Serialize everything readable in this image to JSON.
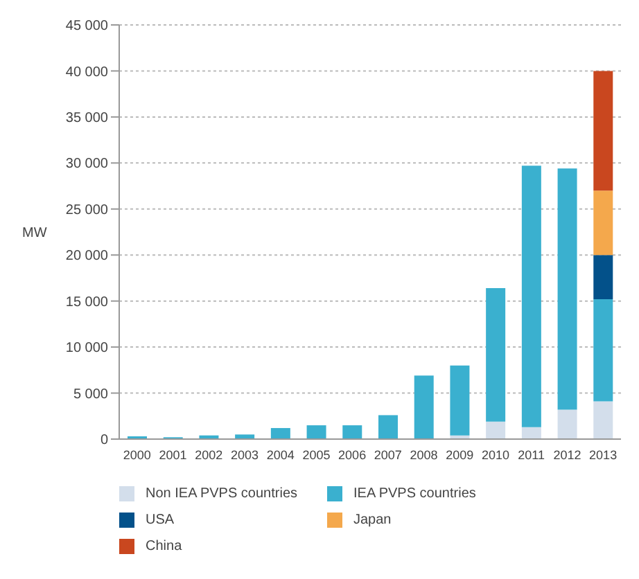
{
  "chart_data": {
    "type": "bar",
    "ylabel": "MW",
    "stacked": true,
    "grid": "y",
    "legend": "bottom",
    "categories": [
      "2000",
      "2001",
      "2002",
      "2003",
      "2004",
      "2005",
      "2006",
      "2007",
      "2008",
      "2009",
      "2010",
      "2011",
      "2012",
      "2013"
    ],
    "ylim": [
      0,
      45000
    ],
    "yticks": [
      0,
      {
        "value": 5000,
        "label": "5 000"
      },
      {
        "value": 10000,
        "label": "10 000"
      },
      {
        "value": 15000,
        "label": "15 000"
      },
      {
        "value": 20000,
        "label": "20 000"
      },
      {
        "value": 25000,
        "label": "25 000"
      },
      {
        "value": 30000,
        "label": "30 000"
      },
      {
        "value": 35000,
        "label": "35 000"
      },
      {
        "value": 40000,
        "label": "40 000"
      },
      {
        "value": 45000,
        "label": "45 000"
      }
    ],
    "series": [
      {
        "name": "Non IEA PVPS countries",
        "color": "#d3deeb",
        "values": [
          0,
          0,
          0,
          0,
          0,
          0,
          0,
          0,
          0,
          400,
          1900,
          1300,
          3200,
          4100
        ]
      },
      {
        "name": "IEA PVPS countries",
        "color": "#3ab0cf",
        "values": [
          300,
          200,
          400,
          500,
          1200,
          1500,
          1500,
          2600,
          6900,
          7600,
          14500,
          28400,
          26200,
          11100
        ]
      },
      {
        "name": "USA",
        "color": "#03518a",
        "values": [
          null,
          null,
          null,
          null,
          null,
          null,
          null,
          null,
          null,
          null,
          null,
          null,
          null,
          4800
        ]
      },
      {
        "name": "Japan",
        "color": "#f4a84c",
        "values": [
          null,
          null,
          null,
          null,
          null,
          null,
          null,
          null,
          null,
          null,
          null,
          null,
          null,
          7000
        ]
      },
      {
        "name": "China",
        "color": "#c9471f",
        "values": [
          null,
          null,
          null,
          null,
          null,
          null,
          null,
          null,
          null,
          null,
          null,
          null,
          null,
          13000
        ]
      }
    ]
  }
}
